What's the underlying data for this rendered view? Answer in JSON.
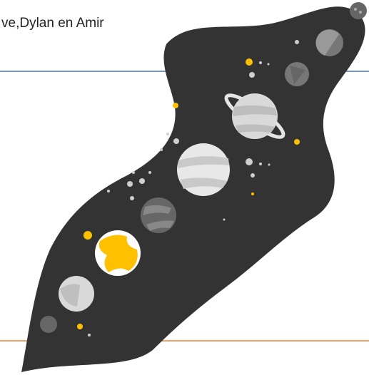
{
  "header": {
    "title": "ve,Dylan en Amir"
  }
}
